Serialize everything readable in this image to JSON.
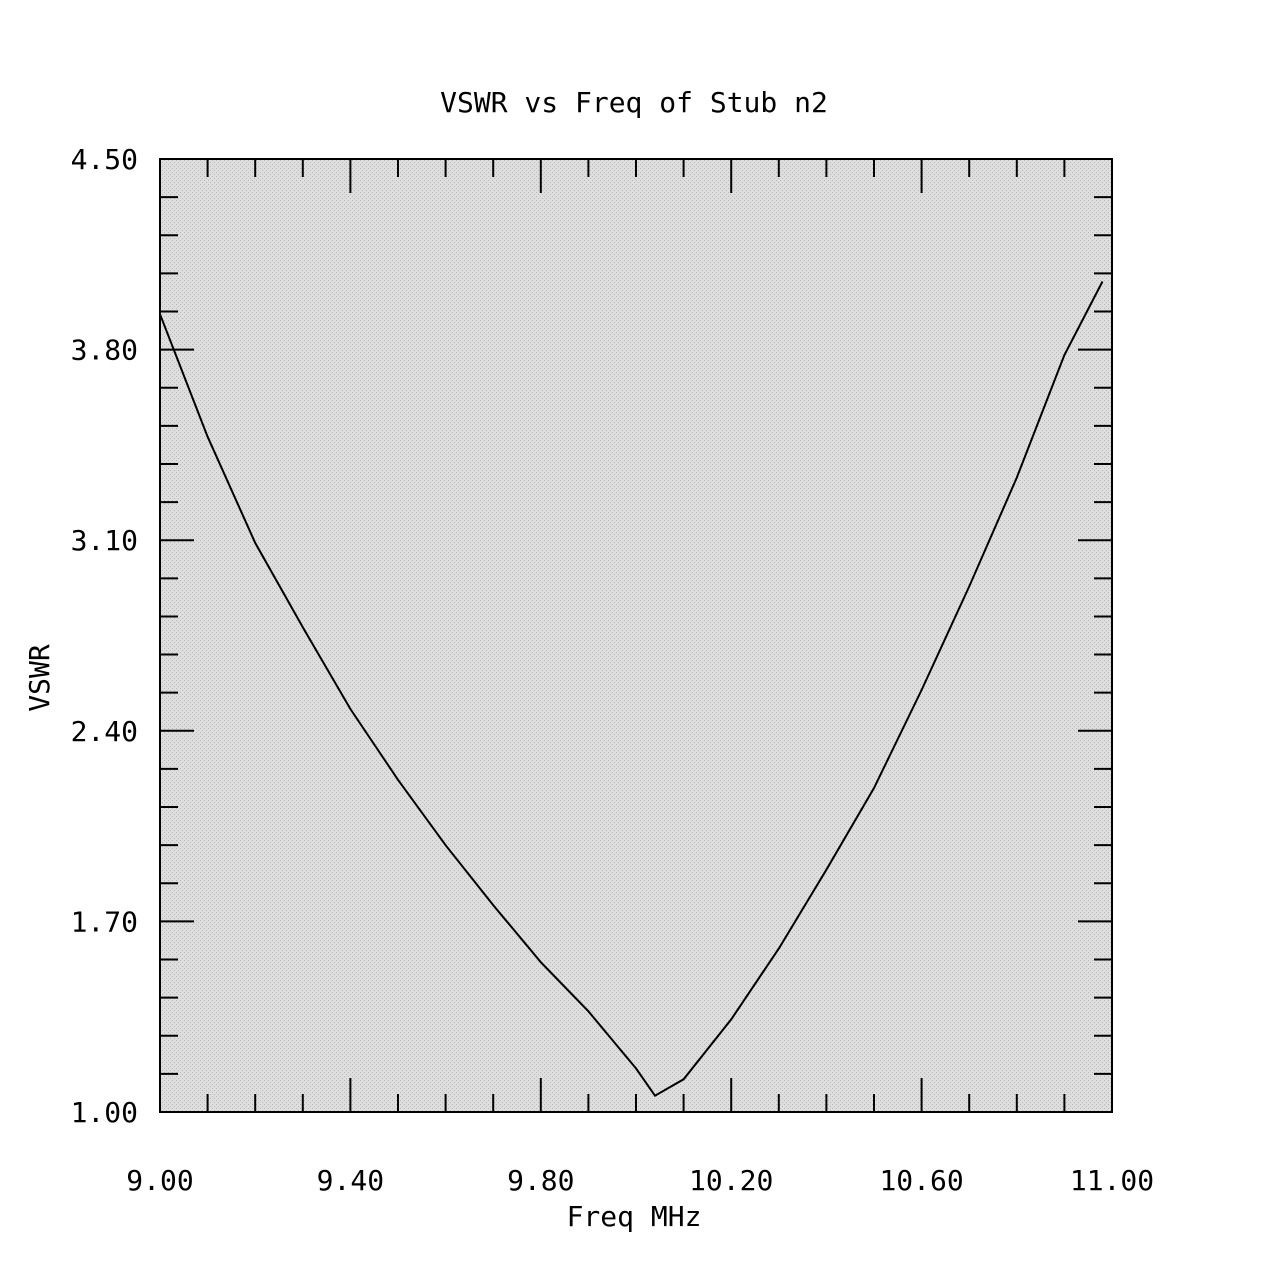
{
  "chart_data": {
    "type": "line",
    "title": "VSWR vs Freq of Stub n2",
    "xlabel": "Freq MHz",
    "ylabel": "VSWR",
    "xlim": [
      9.0,
      11.0
    ],
    "ylim": [
      1.0,
      4.5
    ],
    "x_ticks": [
      "9.00",
      "9.40",
      "9.80",
      "10.20",
      "10.60",
      "11.00"
    ],
    "y_ticks": [
      "1.00",
      "1.70",
      "2.40",
      "3.10",
      "3.80",
      "4.50"
    ],
    "grid": false,
    "series": [
      {
        "x": [
          9.0,
          9.1,
          9.2,
          9.3,
          9.4,
          9.5,
          9.6,
          9.7,
          9.8,
          9.9,
          10.0,
          10.04,
          10.1,
          10.2,
          10.3,
          10.4,
          10.5,
          10.6,
          10.7,
          10.8,
          10.9,
          10.98
        ],
        "y": [
          3.93,
          3.48,
          3.09,
          2.78,
          2.48,
          2.22,
          1.98,
          1.76,
          1.55,
          1.37,
          1.16,
          1.06,
          1.12,
          1.34,
          1.6,
          1.89,
          2.19,
          2.55,
          2.93,
          3.33,
          3.78,
          4.05
        ]
      }
    ],
    "colors": {
      "plot_background": "#d9d9d9",
      "line": "#000000",
      "frame": "#000000"
    }
  }
}
